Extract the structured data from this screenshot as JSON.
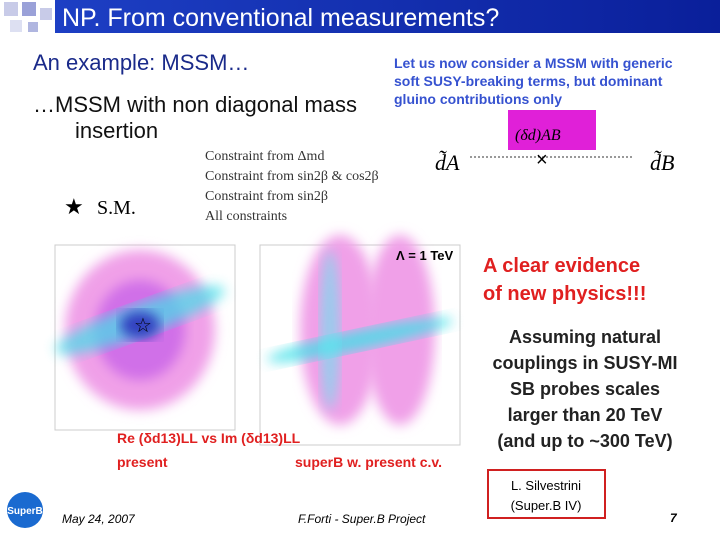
{
  "header": {
    "title": "NP. From  conventional measurements?"
  },
  "subtitle": "An example: MSSM…",
  "heading_lines": [
    "…MSSM with non diagonal mass",
    "insertion"
  ],
  "note_lines": [
    "Let us now consider a MSSM with generic",
    "soft SUSY-breaking terms, but dominant",
    "gluino contributions only"
  ],
  "sm_label": "S.M.",
  "legend": [
    "Constraint from Δmd",
    "Constraint from sin2β & cos2β",
    "Constraint from sin2β",
    "All constraints"
  ],
  "formula": {
    "left": "d̃A",
    "middle": "(δd)AB",
    "right": "d̃B"
  },
  "scale_label": "Λ = 1 TeV",
  "evidence_lines": [
    "A clear evidence",
    "of new physics!!!"
  ],
  "conclusion_lines": [
    "Assuming natural",
    "couplings in SUSY-MI",
    "SB probes scales",
    "larger than 20 TeV",
    "(and up to ~300 TeV)"
  ],
  "plot_labels": {
    "left": "Re (δd13)LL vs Im (δd13)LL",
    "left_sub": "present",
    "right": "superB w. present c.v."
  },
  "footer": {
    "date": "May 24, 2007",
    "author": "F.Forti - Super.B Project",
    "speaker_lines": [
      "L. Silvestrini",
      "(Super.B IV)"
    ],
    "page": "7",
    "logo": "SuperB"
  }
}
